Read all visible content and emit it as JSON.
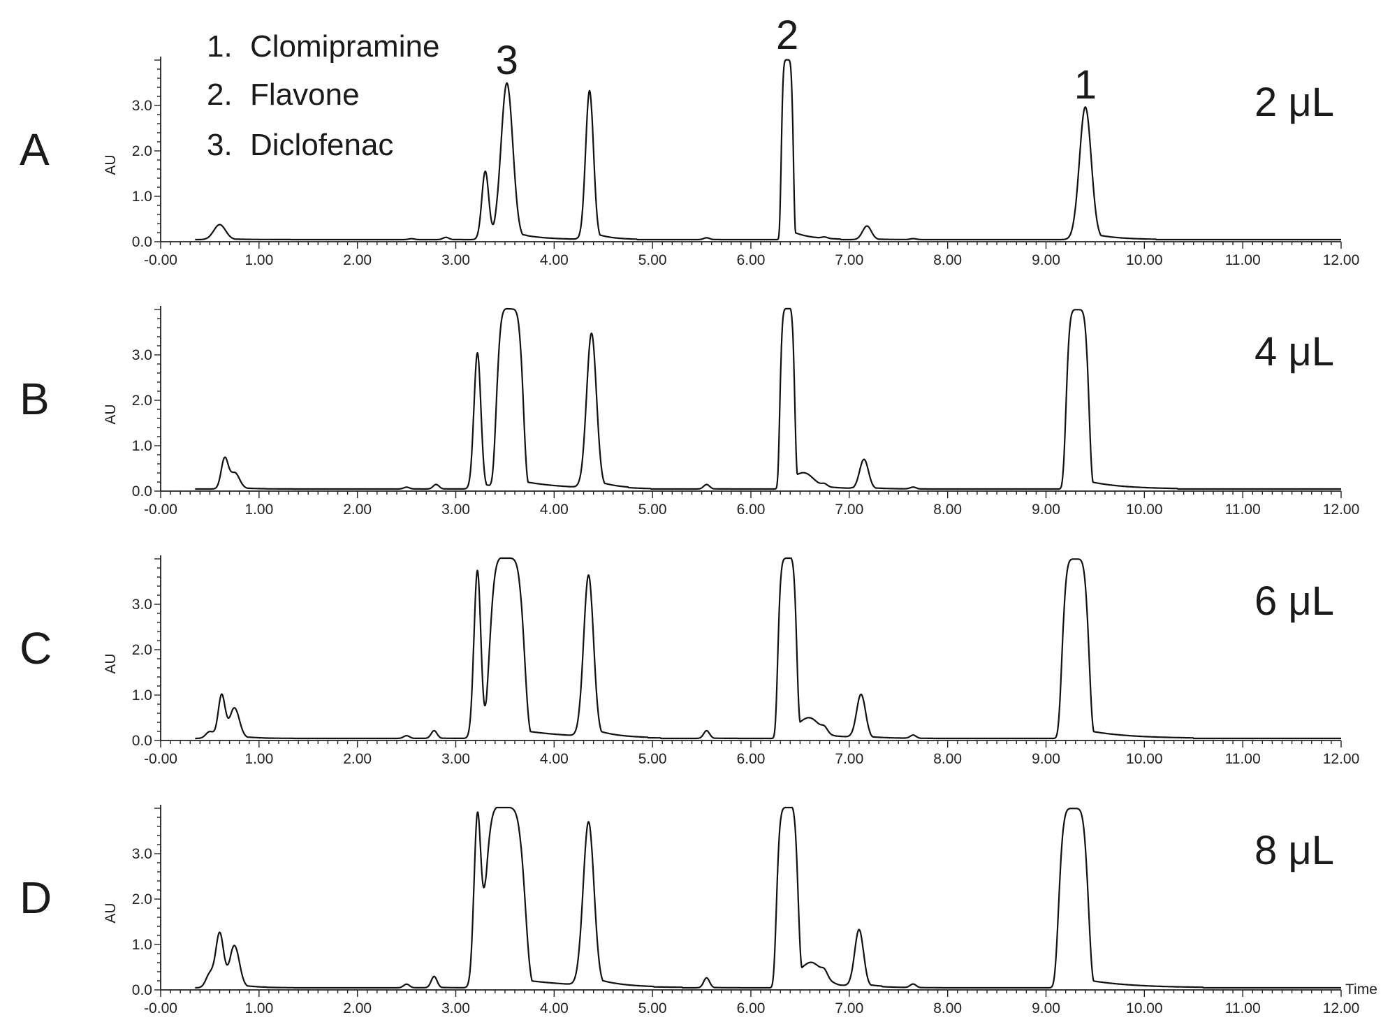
{
  "chart_data": {
    "type": "line",
    "xlabel": "Time",
    "ylabel": "AU",
    "xlim": [
      0.0,
      12.0
    ],
    "ylim": [
      0.0,
      4.0
    ],
    "x_ticks": [
      "-0.00",
      "1.00",
      "2.00",
      "3.00",
      "4.00",
      "5.00",
      "6.00",
      "7.00",
      "8.00",
      "9.00",
      "10.00",
      "11.00",
      "12.00"
    ],
    "y_ticks": [
      "0.0",
      "1.0",
      "2.0",
      "3.0"
    ],
    "legend": [
      {
        "num": "1.",
        "name": "Clomipramine"
      },
      {
        "num": "2.",
        "name": "Flavone"
      },
      {
        "num": "3.",
        "name": "Diclofenac"
      }
    ],
    "peak_labels": [
      {
        "label": "3",
        "time": 3.52
      },
      {
        "label": "2",
        "time": 6.37
      },
      {
        "label": "1",
        "time": 9.4
      }
    ],
    "panels": [
      {
        "letter": "A",
        "volume": "2 μL",
        "peaks": [
          {
            "t": 0.6,
            "h": 0.33,
            "w": 0.06
          },
          {
            "t": 2.55,
            "h": 0.02,
            "w": 0.03
          },
          {
            "t": 2.9,
            "h": 0.05,
            "w": 0.03
          },
          {
            "t": 3.3,
            "h": 1.5,
            "w": 0.035
          },
          {
            "t": 3.52,
            "h": 3.43,
            "w": 0.06
          },
          {
            "t": 4.36,
            "h": 3.28,
            "w": 0.04
          },
          {
            "t": 5.55,
            "h": 0.04,
            "w": 0.03
          },
          {
            "t": 6.37,
            "h": 3.96,
            "w": 0.045
          },
          {
            "t": 6.75,
            "h": 0.03,
            "w": 0.03
          },
          {
            "t": 7.18,
            "h": 0.3,
            "w": 0.045
          },
          {
            "t": 7.65,
            "h": 0.02,
            "w": 0.03
          },
          {
            "t": 9.4,
            "h": 2.92,
            "w": 0.06
          }
        ]
      },
      {
        "letter": "B",
        "volume": "4 μL",
        "peaks": [
          {
            "t": 0.65,
            "h": 0.65,
            "w": 0.035
          },
          {
            "t": 0.75,
            "h": 0.35,
            "w": 0.05
          },
          {
            "t": 2.5,
            "h": 0.04,
            "w": 0.03
          },
          {
            "t": 2.8,
            "h": 0.1,
            "w": 0.03
          },
          {
            "t": 3.22,
            "h": 3.0,
            "w": 0.035
          },
          {
            "t": 3.55,
            "h": 3.95,
            "w": 0.1
          },
          {
            "t": 4.38,
            "h": 3.4,
            "w": 0.05
          },
          {
            "t": 5.55,
            "h": 0.1,
            "w": 0.03
          },
          {
            "t": 6.37,
            "h": 3.95,
            "w": 0.055
          },
          {
            "t": 6.55,
            "h": 0.25,
            "w": 0.09
          },
          {
            "t": 6.75,
            "h": 0.06,
            "w": 0.03
          },
          {
            "t": 7.15,
            "h": 0.65,
            "w": 0.045
          },
          {
            "t": 7.65,
            "h": 0.04,
            "w": 0.03
          },
          {
            "t": 9.32,
            "h": 3.95,
            "w": 0.085
          }
        ]
      },
      {
        "letter": "C",
        "volume": "6 μL",
        "peaks": [
          {
            "t": 0.5,
            "h": 0.15,
            "w": 0.04
          },
          {
            "t": 0.62,
            "h": 0.95,
            "w": 0.035
          },
          {
            "t": 0.75,
            "h": 0.65,
            "w": 0.05
          },
          {
            "t": 2.5,
            "h": 0.06,
            "w": 0.03
          },
          {
            "t": 2.78,
            "h": 0.17,
            "w": 0.03
          },
          {
            "t": 3.22,
            "h": 3.7,
            "w": 0.035
          },
          {
            "t": 3.52,
            "h": 3.95,
            "w": 0.13
          },
          {
            "t": 4.35,
            "h": 3.55,
            "w": 0.05
          },
          {
            "t": 5.55,
            "h": 0.17,
            "w": 0.03
          },
          {
            "t": 6.37,
            "h": 3.95,
            "w": 0.07
          },
          {
            "t": 6.6,
            "h": 0.35,
            "w": 0.1
          },
          {
            "t": 6.75,
            "h": 0.1,
            "w": 0.03
          },
          {
            "t": 7.12,
            "h": 0.95,
            "w": 0.045
          },
          {
            "t": 7.65,
            "h": 0.07,
            "w": 0.03
          },
          {
            "t": 9.3,
            "h": 3.95,
            "w": 0.1
          }
        ]
      },
      {
        "letter": "D",
        "volume": "8 μL",
        "peaks": [
          {
            "t": 0.5,
            "h": 0.3,
            "w": 0.04
          },
          {
            "t": 0.6,
            "h": 1.2,
            "w": 0.04
          },
          {
            "t": 0.75,
            "h": 0.9,
            "w": 0.05
          },
          {
            "t": 2.5,
            "h": 0.08,
            "w": 0.03
          },
          {
            "t": 2.78,
            "h": 0.25,
            "w": 0.03
          },
          {
            "t": 3.22,
            "h": 3.75,
            "w": 0.035
          },
          {
            "t": 3.5,
            "h": 3.95,
            "w": 0.15
          },
          {
            "t": 4.35,
            "h": 3.6,
            "w": 0.055
          },
          {
            "t": 5.55,
            "h": 0.22,
            "w": 0.03
          },
          {
            "t": 6.37,
            "h": 3.95,
            "w": 0.08
          },
          {
            "t": 6.62,
            "h": 0.45,
            "w": 0.11
          },
          {
            "t": 6.75,
            "h": 0.12,
            "w": 0.03
          },
          {
            "t": 7.1,
            "h": 1.25,
            "w": 0.045
          },
          {
            "t": 7.65,
            "h": 0.08,
            "w": 0.03
          },
          {
            "t": 9.28,
            "h": 3.95,
            "w": 0.11
          }
        ]
      }
    ]
  }
}
